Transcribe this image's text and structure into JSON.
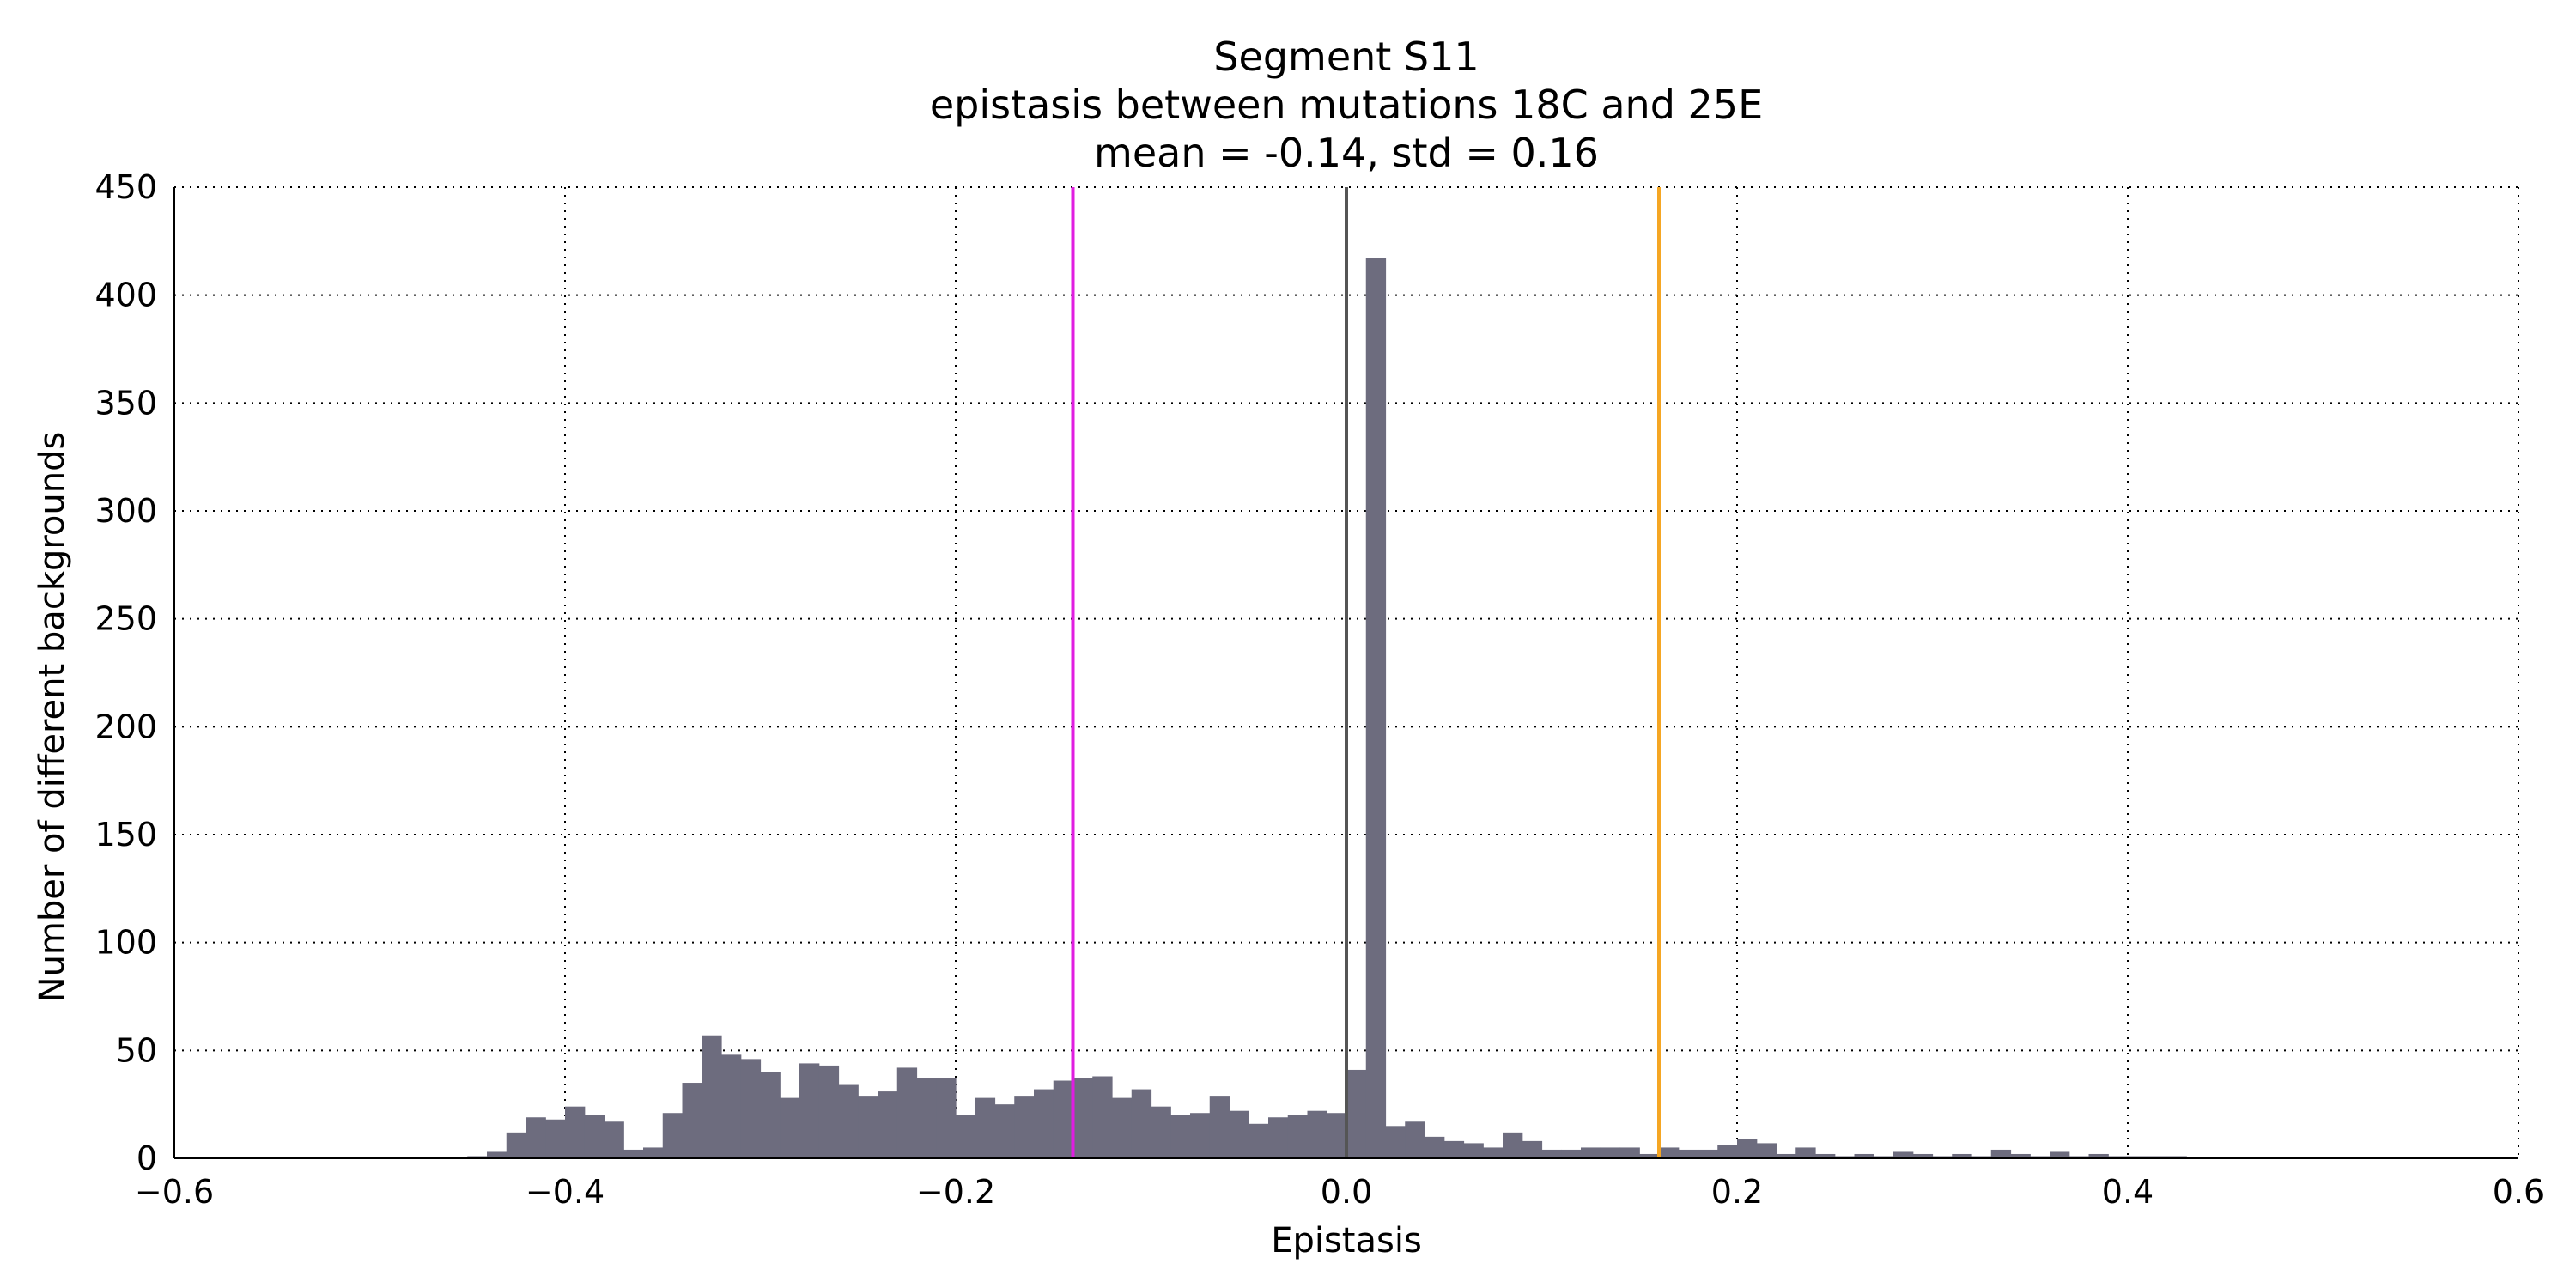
{
  "chart_data": {
    "type": "bar",
    "title_lines": [
      "Segment S11",
      "epistasis between mutations 18C and 25E",
      "mean = -0.14, std = 0.16"
    ],
    "xlabel": "Epistasis",
    "ylabel": "Number of different backgrounds",
    "xlim": [
      -0.6,
      0.6
    ],
    "ylim": [
      0,
      450
    ],
    "x_ticks": [
      -0.6,
      -0.4,
      -0.2,
      0.0,
      0.2,
      0.4,
      0.6
    ],
    "x_tick_labels": [
      "−0.6",
      "−0.4",
      "−0.2",
      "0.0",
      "0.2",
      "0.4",
      "0.6"
    ],
    "y_ticks": [
      0,
      50,
      100,
      150,
      200,
      250,
      300,
      350,
      400,
      450
    ],
    "y_tick_labels": [
      "0",
      "50",
      "100",
      "150",
      "200",
      "250",
      "300",
      "350",
      "400",
      "450"
    ],
    "grid": true,
    "bin_start": -0.6,
    "bin_width": 0.01,
    "values": [
      0,
      0,
      0,
      0,
      0,
      0,
      0,
      0,
      0,
      0,
      0,
      0,
      0,
      0,
      0,
      1,
      3,
      12,
      19,
      18,
      24,
      20,
      17,
      4,
      5,
      21,
      35,
      57,
      48,
      46,
      40,
      28,
      44,
      43,
      34,
      29,
      31,
      42,
      37,
      37,
      20,
      28,
      25,
      29,
      32,
      36,
      37,
      38,
      28,
      32,
      24,
      20,
      21,
      29,
      22,
      16,
      19,
      20,
      22,
      21,
      41,
      417,
      15,
      17,
      10,
      8,
      7,
      5,
      12,
      8,
      4,
      4,
      5,
      5,
      5,
      2,
      5,
      4,
      4,
      6,
      9,
      7,
      2,
      5,
      2,
      1,
      2,
      1,
      3,
      2,
      1,
      2,
      1,
      4,
      2,
      1,
      3,
      1,
      2,
      1,
      1,
      1,
      1,
      0,
      0,
      0,
      0,
      0,
      0,
      0,
      0,
      0,
      0,
      0,
      0,
      0,
      0,
      0,
      0,
      0
    ],
    "bar_color": "#6d6c7e",
    "vertical_lines": [
      {
        "x": 0.0,
        "color": "#555555"
      },
      {
        "x": -0.14,
        "color": "#e01ee0"
      },
      {
        "x": 0.16,
        "color": "#f5a623"
      }
    ]
  }
}
